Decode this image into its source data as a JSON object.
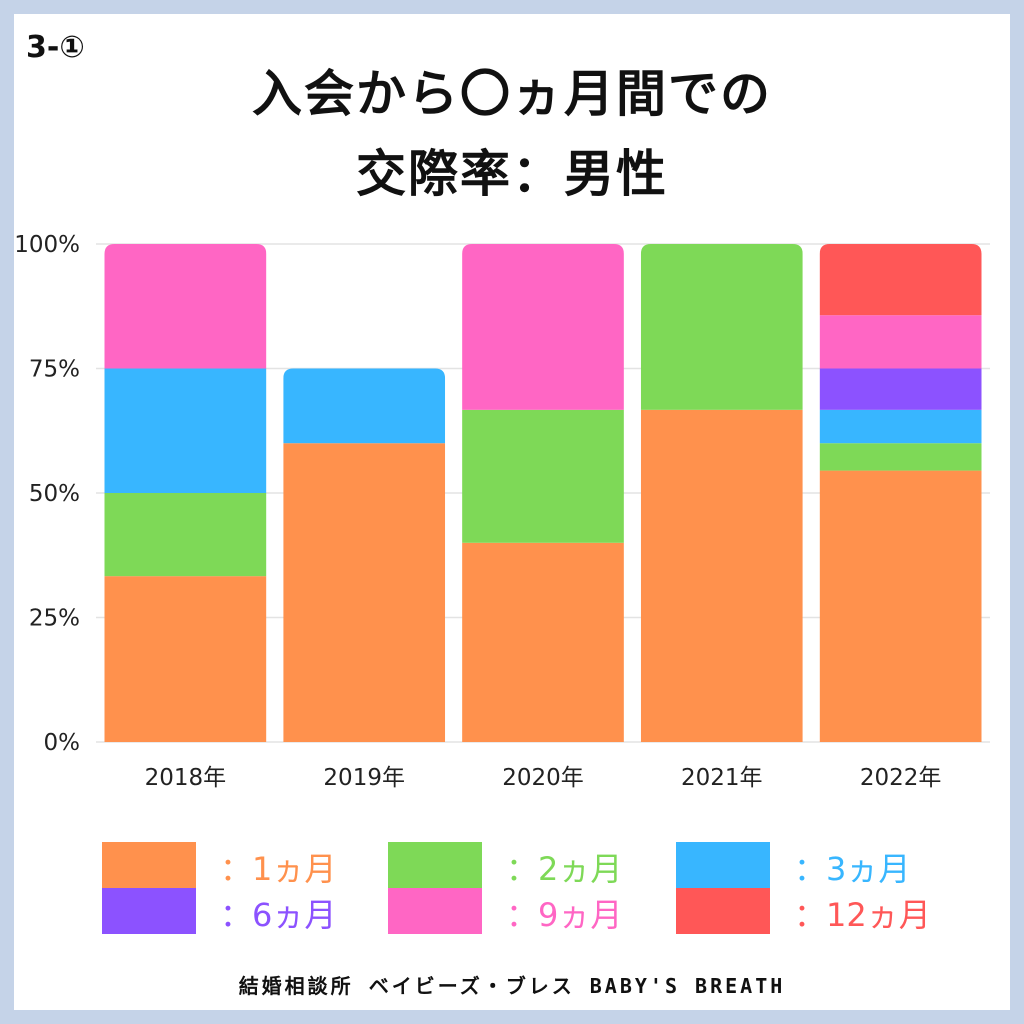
{
  "badge": "3-①",
  "title_line1": "入会から〇ヵ月間での",
  "title_line2": "交際率：男性",
  "footer": "結婚相談所 ベイビーズ・ブレス BABY'S BREATH",
  "chart_data": {
    "type": "bar",
    "stacked": true,
    "categories": [
      "2018年",
      "2019年",
      "2020年",
      "2021年",
      "2022年"
    ],
    "ylim": [
      0,
      100
    ],
    "yticks": [
      "0%",
      "25%",
      "50%",
      "75%",
      "100%"
    ],
    "grid": true,
    "legend_position": "bottom",
    "series": [
      {
        "name": "：1ヵ月",
        "color": "#ff914d",
        "values": [
          33.3,
          60,
          40,
          66.7,
          54.5
        ]
      },
      {
        "name": "：2ヵ月",
        "color": "#7ed957",
        "values": [
          16.7,
          0,
          26.7,
          33.3,
          5.5
        ]
      },
      {
        "name": "：3ヵ月",
        "color": "#38b6ff",
        "values": [
          25,
          15,
          0,
          0,
          6.7
        ]
      },
      {
        "name": "：6ヵ月",
        "color": "#8c52ff",
        "values": [
          0,
          0,
          0,
          0,
          8.3
        ]
      },
      {
        "name": "：9ヵ月",
        "color": "#ff66c4",
        "values": [
          25,
          0,
          33.3,
          0,
          10.7
        ]
      },
      {
        "name": "：12ヵ月",
        "color": "#ff5757",
        "values": [
          0,
          0,
          0,
          0,
          14.3
        ]
      }
    ]
  }
}
